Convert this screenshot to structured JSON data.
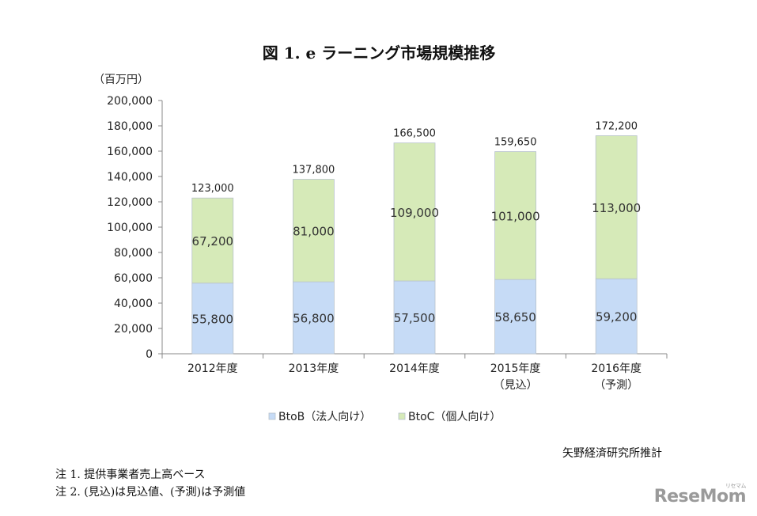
{
  "chart_data": {
    "type": "bar",
    "stacked": true,
    "title": "図 1. e ラーニング市場規模推移",
    "unit_label": "（百万円）",
    "categories": [
      [
        "2012年度"
      ],
      [
        "2013年度"
      ],
      [
        "2014年度"
      ],
      [
        "2015年度",
        "（見込）"
      ],
      [
        "2016年度",
        "（予測）"
      ]
    ],
    "series": [
      {
        "name": "BtoB（法人向け）",
        "color": "#c6dbf6",
        "values": [
          55800,
          56800,
          57500,
          58650,
          59200
        ]
      },
      {
        "name": "BtoC（個人向け）",
        "color": "#d6eab8",
        "values": [
          67200,
          81000,
          109000,
          101000,
          113000
        ]
      }
    ],
    "totals": [
      123000,
      137800,
      166500,
      159650,
      172200
    ],
    "ylim": [
      0,
      200000
    ],
    "ytick_step": 20000,
    "grid": false,
    "legend_position": "bottom"
  },
  "source": "矢野経済研究所推計",
  "notes": [
    "注 1.  提供事業者売上高ベース",
    "注 2.  (見込)は見込値、(予測)は予測値"
  ],
  "logo": {
    "text": "ReseMom",
    "sub": "リセマム"
  }
}
